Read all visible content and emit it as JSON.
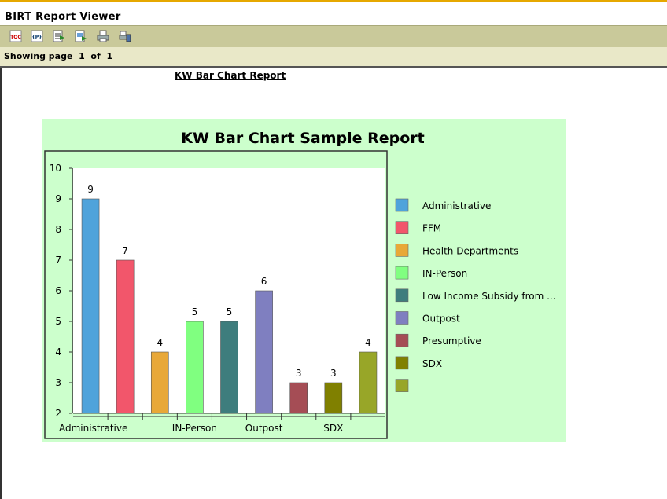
{
  "app": {
    "title": "BIRT Report Viewer"
  },
  "toolbar": {
    "buttons": [
      {
        "name": "toc-icon",
        "glyph": "TOC"
      },
      {
        "name": "parameters-icon",
        "glyph": "{P}"
      },
      {
        "name": "export-data-icon",
        "glyph": ""
      },
      {
        "name": "export-report-icon",
        "glyph": ""
      },
      {
        "name": "print-icon",
        "glyph": ""
      },
      {
        "name": "print-server-icon",
        "glyph": ""
      }
    ]
  },
  "pagination": {
    "label": "Showing page",
    "current": "1",
    "of_label": "of",
    "total": "1"
  },
  "report": {
    "title": "KW Bar Chart Report"
  },
  "chart_data": {
    "type": "bar",
    "title": "KW Bar Chart Sample Report",
    "xlabel": "",
    "ylabel": "",
    "ylim": [
      2,
      10
    ],
    "yticks": [
      2,
      3,
      4,
      5,
      6,
      7,
      8,
      9,
      10
    ],
    "grid": false,
    "legend_position": "right",
    "categories": [
      "Administrative",
      "FFM",
      "Health Departments",
      "IN-Person",
      "Low Income Subsidy from ...",
      "Outpost",
      "Presumptive",
      "SDX",
      ""
    ],
    "values": [
      9,
      7,
      4,
      5,
      5,
      6,
      3,
      3,
      4
    ],
    "x_tick_labels": [
      "Administrative",
      "",
      "",
      "IN-Person",
      "",
      "Outpost",
      "",
      "SDX",
      ""
    ],
    "legend": [
      "Administrative",
      "FFM",
      "Health Departments",
      "IN-Person",
      "Low Income Subsidy from ...",
      "Outpost",
      "Presumptive",
      "SDX",
      ""
    ],
    "colors": [
      "#4fa3db",
      "#f2566b",
      "#e8a838",
      "#80ff80",
      "#3e7d7d",
      "#7f7fc0",
      "#a54d55",
      "#808000",
      "#98a628"
    ],
    "background": "#ccffcc",
    "plot_background": "#ffffff"
  }
}
